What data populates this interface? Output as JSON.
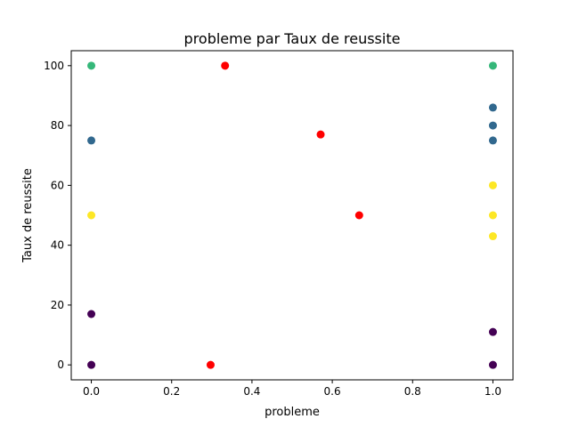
{
  "chart_data": {
    "type": "scatter",
    "title": "probleme par Taux de reussite",
    "xlabel": "probleme",
    "ylabel": "Taux de reussite",
    "xlim": [
      -0.05,
      1.05
    ],
    "ylim": [
      -5,
      105
    ],
    "xticks": [
      "0.0",
      "0.2",
      "0.4",
      "0.6",
      "0.8",
      "1.0"
    ],
    "yticks": [
      "0",
      "20",
      "40",
      "60",
      "80",
      "100"
    ],
    "grid": false,
    "colors": {
      "red": "#ff0000",
      "purple": "#440154",
      "blue": "#31688e",
      "green": "#35b779",
      "yellow": "#fde725"
    },
    "points": [
      {
        "x": 0,
        "y": 100,
        "color": "green"
      },
      {
        "x": 0,
        "y": 75,
        "color": "blue"
      },
      {
        "x": 0,
        "y": 50,
        "color": "yellow"
      },
      {
        "x": 0,
        "y": 17,
        "color": "purple"
      },
      {
        "x": 0,
        "y": 0,
        "color": "purple"
      },
      {
        "x": 0.297,
        "y": 0,
        "color": "red"
      },
      {
        "x": 0.333,
        "y": 100,
        "color": "red"
      },
      {
        "x": 0.571,
        "y": 77,
        "color": "red"
      },
      {
        "x": 0.667,
        "y": 50,
        "color": "red"
      },
      {
        "x": 1,
        "y": 100,
        "color": "green"
      },
      {
        "x": 1,
        "y": 86,
        "color": "blue"
      },
      {
        "x": 1,
        "y": 80,
        "color": "blue"
      },
      {
        "x": 1,
        "y": 75,
        "color": "blue"
      },
      {
        "x": 1,
        "y": 60,
        "color": "yellow"
      },
      {
        "x": 1,
        "y": 50,
        "color": "yellow"
      },
      {
        "x": 1,
        "y": 43,
        "color": "yellow"
      },
      {
        "x": 1,
        "y": 11,
        "color": "purple"
      },
      {
        "x": 1,
        "y": 0,
        "color": "purple"
      }
    ]
  }
}
